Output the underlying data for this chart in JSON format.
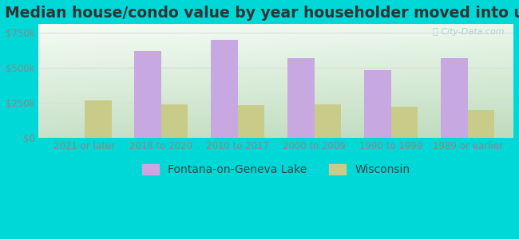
{
  "title": "Median house/condo value by year householder moved into unit",
  "categories": [
    "2021 or later",
    "2018 to 2020",
    "2010 to 2017",
    "2000 to 2009",
    "1990 to 1999",
    "1989 or earlier"
  ],
  "fontana_values": [
    0,
    620000,
    700000,
    570000,
    480000,
    570000
  ],
  "wisconsin_values": [
    265000,
    240000,
    230000,
    240000,
    220000,
    200000
  ],
  "fontana_color": "#c8a8e0",
  "wisconsin_color": "#c8cc88",
  "bg_outer": "#00d8d8",
  "yticks": [
    0,
    250000,
    500000,
    750000
  ],
  "ytick_labels": [
    "$0",
    "$250k",
    "$500k",
    "$750k"
  ],
  "ylim": [
    0,
    810000
  ],
  "bar_width": 0.35,
  "title_fontsize": 13.5,
  "tick_fontsize": 8.5,
  "legend_fontsize": 10,
  "watermark_text": "ⓘ City-Data.com",
  "legend_labels": [
    "Fontana-on-Geneva Lake",
    "Wisconsin"
  ],
  "grid_color": "#dddddd",
  "tick_color": "#888888",
  "title_color": "#333333"
}
